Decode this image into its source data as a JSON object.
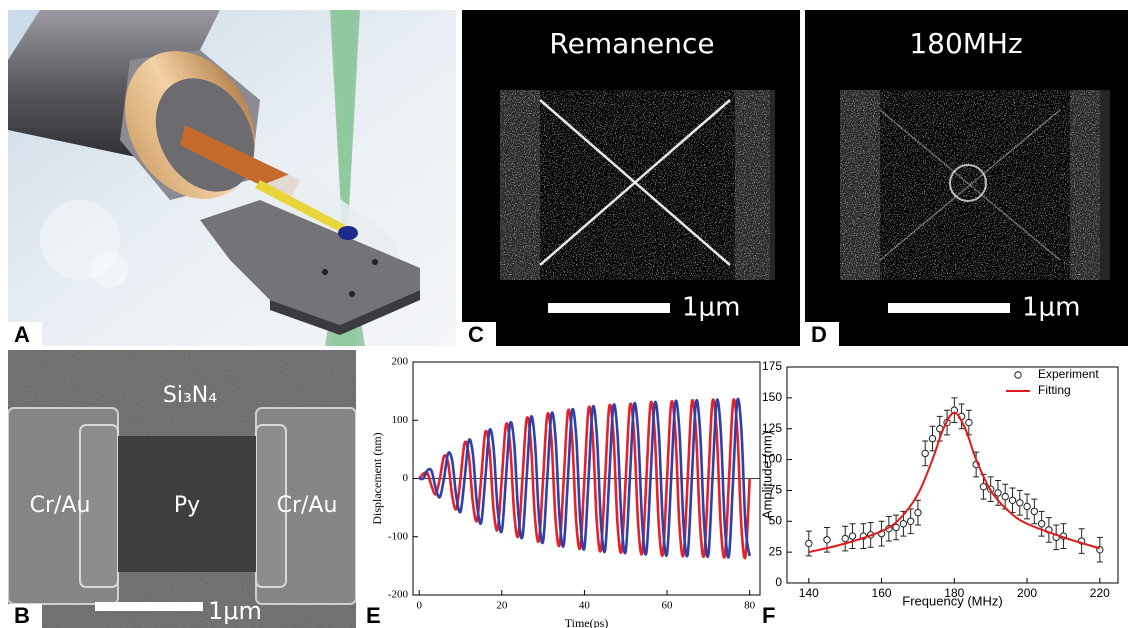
{
  "panels": {
    "labels": [
      "A",
      "B",
      "C",
      "D",
      "E",
      "F"
    ],
    "c_title": "Remanence",
    "d_title": "180MHz",
    "scale_bar": "1μm",
    "b_substrate": "Si₃N₄",
    "b_left": "Cr/Au",
    "b_center": "Py",
    "b_right": "Cr/Au"
  },
  "chart_data": [
    {
      "type": "line",
      "xlabel": "Time(ps)",
      "ylabel": "Displacement (nm)",
      "xlim": [
        -1.5,
        82.5
      ],
      "ylim": [
        -200,
        200
      ],
      "xticks": [
        0,
        20,
        40,
        60,
        80
      ],
      "yticks": [
        -200,
        -100,
        0,
        100,
        200
      ],
      "zero_line": true,
      "x": [
        0,
        1,
        2,
        3,
        4,
        5,
        6,
        7,
        8,
        9,
        10,
        11,
        12,
        13,
        14,
        15,
        16,
        17,
        18,
        19,
        20,
        21,
        22,
        23,
        24,
        25,
        26,
        27,
        28,
        29,
        30,
        31,
        32,
        33,
        34,
        35,
        36,
        37,
        38,
        39,
        40,
        41,
        42,
        43,
        44,
        45,
        46,
        47,
        48,
        49,
        50,
        51,
        52,
        53,
        54,
        55,
        56,
        57,
        58,
        59,
        60,
        61,
        62,
        63,
        64,
        65,
        66,
        67,
        68,
        69,
        70,
        71,
        72,
        73,
        74,
        75,
        76,
        77,
        78,
        79,
        80
      ],
      "series": [
        {
          "color": "#e8202a",
          "values": [
            0,
            8,
            9,
            -13,
            -27,
            0,
            38,
            27,
            -30,
            -52,
            0,
            61,
            40,
            -42,
            -72,
            0,
            79,
            51,
            -53,
            -87,
            0,
            92,
            58,
            -60,
            -98,
            0,
            102,
            64,
            -65,
            -106,
            0,
            109,
            68,
            -70,
            -113,
            0,
            115,
            72,
            -73,
            -118,
            0,
            120,
            75,
            -75,
            -122,
            0,
            123,
            77,
            -77,
            -124,
            0,
            125,
            78,
            -78,
            -127,
            0,
            128,
            80,
            -80,
            -129,
            0,
            129,
            81,
            -81,
            -130,
            0,
            131,
            81,
            -81,
            -131,
            0,
            132,
            82,
            -82,
            -132,
            0,
            132,
            83,
            -83,
            -133,
            0
          ]
        },
        {
          "color": "#3040a8",
          "values": [
            0,
            0,
            14,
            13,
            -17,
            -32,
            0,
            43,
            30,
            -32,
            -57,
            0,
            65,
            42,
            -45,
            -76,
            0,
            82,
            53,
            -54,
            -90,
            0,
            94,
            60,
            -61,
            -100,
            0,
            104,
            65,
            -66,
            -108,
            0,
            110,
            70,
            -70,
            -114,
            0,
            116,
            73,
            -73,
            -119,
            0,
            121,
            75,
            -76,
            -123,
            0,
            124,
            77,
            -77,
            -125,
            0,
            126,
            78,
            -79,
            -127,
            0,
            128,
            80,
            -80,
            -129,
            0,
            130,
            81,
            -81,
            -130,
            0,
            131,
            81,
            -81,
            -131,
            0,
            132,
            82,
            -82,
            -132,
            0,
            133,
            83,
            -83,
            -133
          ]
        }
      ]
    },
    {
      "type": "scatter",
      "xlabel": "Frequency (MHz)",
      "ylabel": "Amplitude (nm)",
      "xlim": [
        134,
        225
      ],
      "ylim": [
        0,
        175
      ],
      "xticks": [
        140,
        160,
        180,
        200,
        220
      ],
      "yticks": [
        0,
        25,
        50,
        75,
        100,
        125,
        150,
        175
      ],
      "legend": "top-right",
      "series": [
        {
          "name": "Experiment",
          "mode": "markers",
          "color": "#222222",
          "x": [
            140,
            145,
            150,
            152,
            155,
            157,
            160,
            162,
            164,
            166,
            168,
            170,
            172,
            174,
            176,
            178,
            180,
            182,
            184,
            186,
            188,
            190,
            192,
            194,
            196,
            198,
            200,
            202,
            204,
            206,
            208,
            210,
            215,
            220
          ],
          "values": [
            32,
            35,
            36,
            38,
            38,
            39,
            40,
            44,
            45,
            48,
            50,
            57,
            105,
            117,
            125,
            130,
            140,
            135,
            130,
            96,
            78,
            76,
            73,
            70,
            67,
            65,
            62,
            58,
            48,
            43,
            37,
            38,
            34,
            27
          ],
          "errors": [
            10,
            10,
            10,
            10,
            10,
            10,
            10,
            10,
            10,
            10,
            10,
            10,
            10,
            10,
            10,
            10,
            10,
            10,
            10,
            10,
            10,
            10,
            10,
            10,
            10,
            10,
            10,
            10,
            10,
            10,
            10,
            10,
            10,
            10
          ]
        },
        {
          "name": "Fitting",
          "mode": "line",
          "color": "#e01b1b",
          "x": [
            140,
            150,
            160,
            165,
            170,
            174,
            177,
            180,
            183,
            186,
            190,
            195,
            200,
            210,
            220
          ],
          "values": [
            25,
            32,
            42,
            52,
            72,
            100,
            125,
            138,
            125,
            100,
            75,
            58,
            48,
            37,
            28
          ]
        }
      ]
    }
  ]
}
